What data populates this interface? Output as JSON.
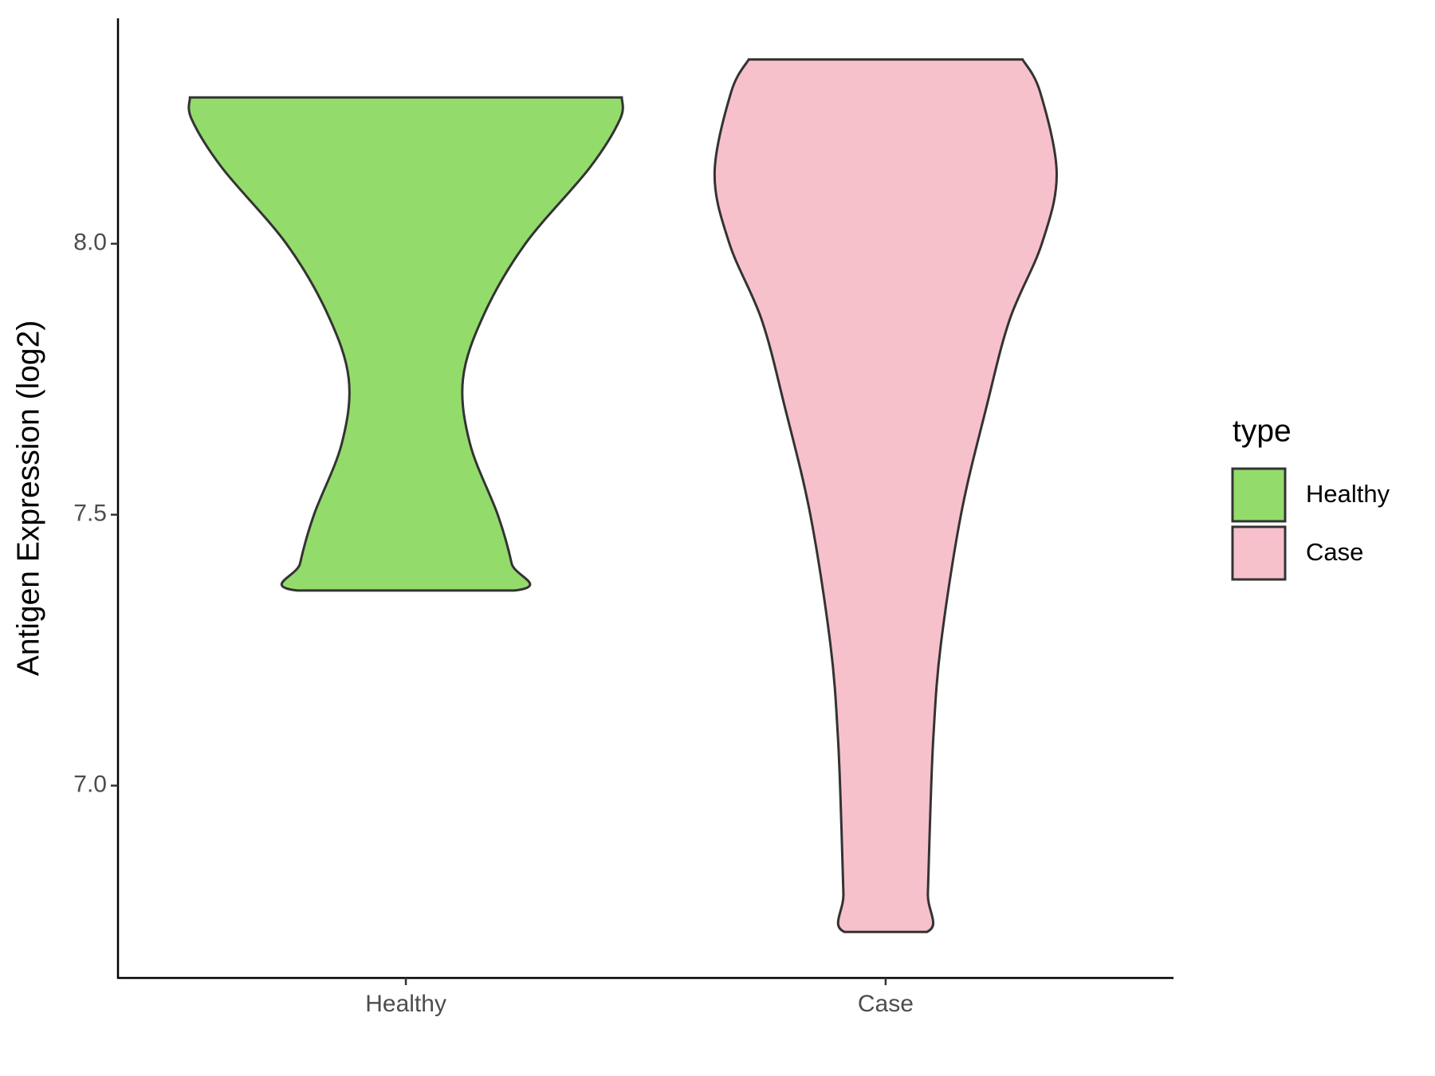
{
  "chart_data": {
    "type": "violin",
    "y_label": "Antigen Expression (log2)",
    "categories": [
      "Healthy",
      "Case"
    ],
    "legend_title": "type",
    "series": [
      {
        "name": "Healthy",
        "color": "#93dc6b",
        "y": [
          8.27,
          8.23,
          8.14,
          8.0,
          7.87,
          7.75,
          7.63,
          7.5,
          7.41,
          7.36
        ],
        "width": [
          0.9,
          0.893,
          0.766,
          0.498,
          0.326,
          0.238,
          0.268,
          0.383,
          0.441,
          0.452
        ]
      },
      {
        "name": "Case",
        "color": "#f7c1cc",
        "y": [
          8.34,
          8.28,
          8.13,
          8.0,
          7.86,
          7.7,
          7.5,
          7.26,
          7.09,
          6.92,
          6.8,
          6.73
        ],
        "width": [
          0.571,
          0.644,
          0.713,
          0.651,
          0.517,
          0.421,
          0.314,
          0.23,
          0.199,
          0.184,
          0.176,
          0.172
        ]
      }
    ],
    "ylim": [
      6.645,
      8.416
    ],
    "yticks": [
      {
        "value": 7,
        "label": "7.0"
      },
      7.5,
      {
        "value": 8,
        "label": "8.0"
      }
    ],
    "grid": false
  }
}
